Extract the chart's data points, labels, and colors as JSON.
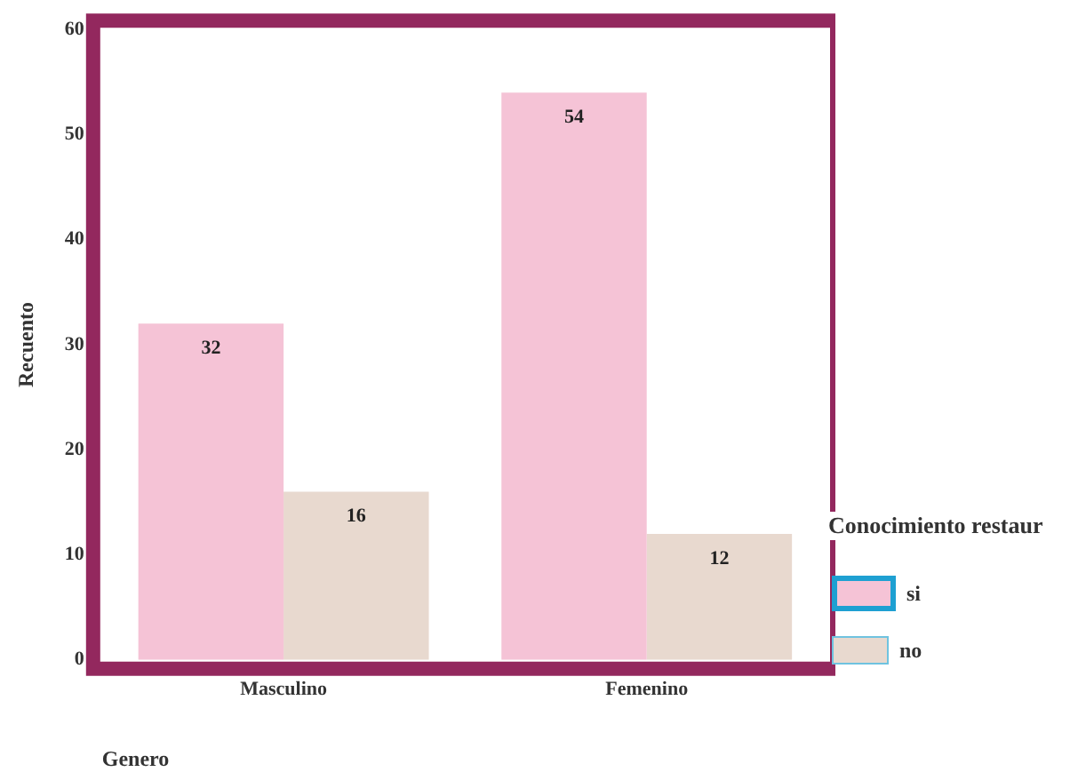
{
  "chart_data": {
    "type": "bar",
    "xlabel": "Genero",
    "ylabel": "Recuento",
    "legend_title": "Conocimiento restaur",
    "categories": [
      "Masculino",
      "Femenino"
    ],
    "series": [
      {
        "name": "si",
        "color": "#f5c3d6",
        "values": [
          32,
          54
        ]
      },
      {
        "name": "no",
        "color": "#e8d9cf",
        "values": [
          16,
          12
        ]
      }
    ],
    "ylim": [
      0,
      60
    ],
    "yticks": [
      0,
      10,
      20,
      30,
      40,
      50,
      60
    ],
    "grid": false,
    "legend": "right",
    "data_labels": true
  }
}
